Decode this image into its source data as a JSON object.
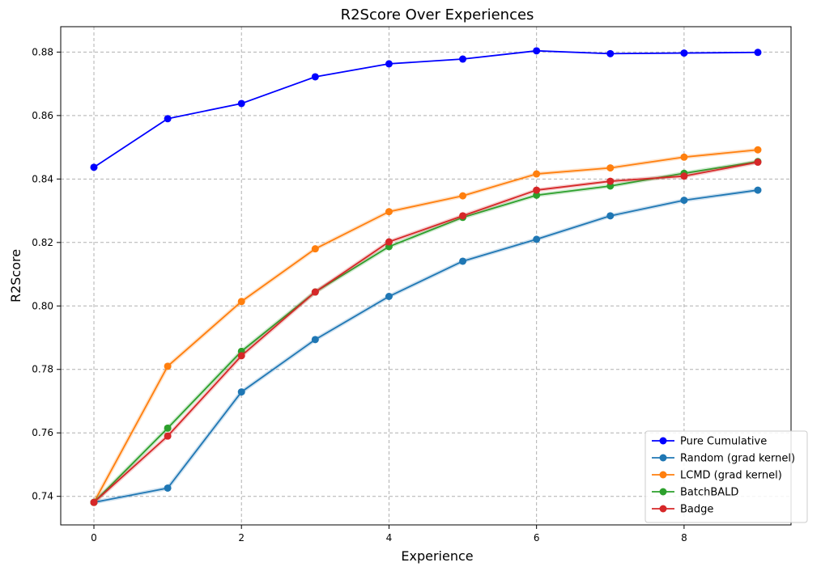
{
  "chart_data": {
    "type": "line",
    "title": "R2Score Over Experiences",
    "xlabel": "Experience",
    "ylabel": "R2Score",
    "xlim": [
      -0.45,
      9.45
    ],
    "ylim": [
      0.731,
      0.888
    ],
    "xticks": [
      0,
      2,
      4,
      6,
      8
    ],
    "yticks": [
      0.74,
      0.76,
      0.78,
      0.8,
      0.82,
      0.84,
      0.86,
      0.88
    ],
    "ytick_labels": [
      "0.74",
      "0.76",
      "0.78",
      "0.80",
      "0.82",
      "0.84",
      "0.86",
      "0.88"
    ],
    "grid": true,
    "legend_position": "lower-right",
    "x": [
      0,
      1,
      2,
      3,
      4,
      5,
      6,
      7,
      8,
      9
    ],
    "series": [
      {
        "name": "Pure Cumulative",
        "color": "#0000ff",
        "values": [
          0.8437,
          0.859,
          0.8638,
          0.8722,
          0.8763,
          0.8778,
          0.8804,
          0.8795,
          0.8797,
          0.8799
        ]
      },
      {
        "name": "Random (grad kernel)",
        "color": "#1f77b4",
        "values": [
          0.7381,
          0.7426,
          0.7729,
          0.7894,
          0.803,
          0.8141,
          0.821,
          0.8284,
          0.8333,
          0.8365
        ]
      },
      {
        "name": "LCMD (grad kernel)",
        "color": "#ff7f0e",
        "values": [
          0.7381,
          0.781,
          0.8014,
          0.818,
          0.8297,
          0.8347,
          0.8416,
          0.8435,
          0.8469,
          0.8492
        ]
      },
      {
        "name": "BatchBALD",
        "color": "#2ca02c",
        "values": [
          0.7381,
          0.7615,
          0.7857,
          0.8044,
          0.8187,
          0.8279,
          0.8349,
          0.8378,
          0.8418,
          0.8455
        ]
      },
      {
        "name": "Badge",
        "color": "#d62728",
        "values": [
          0.7381,
          0.759,
          0.7843,
          0.8044,
          0.8202,
          0.8284,
          0.8365,
          0.8393,
          0.8409,
          0.8453
        ]
      }
    ]
  }
}
